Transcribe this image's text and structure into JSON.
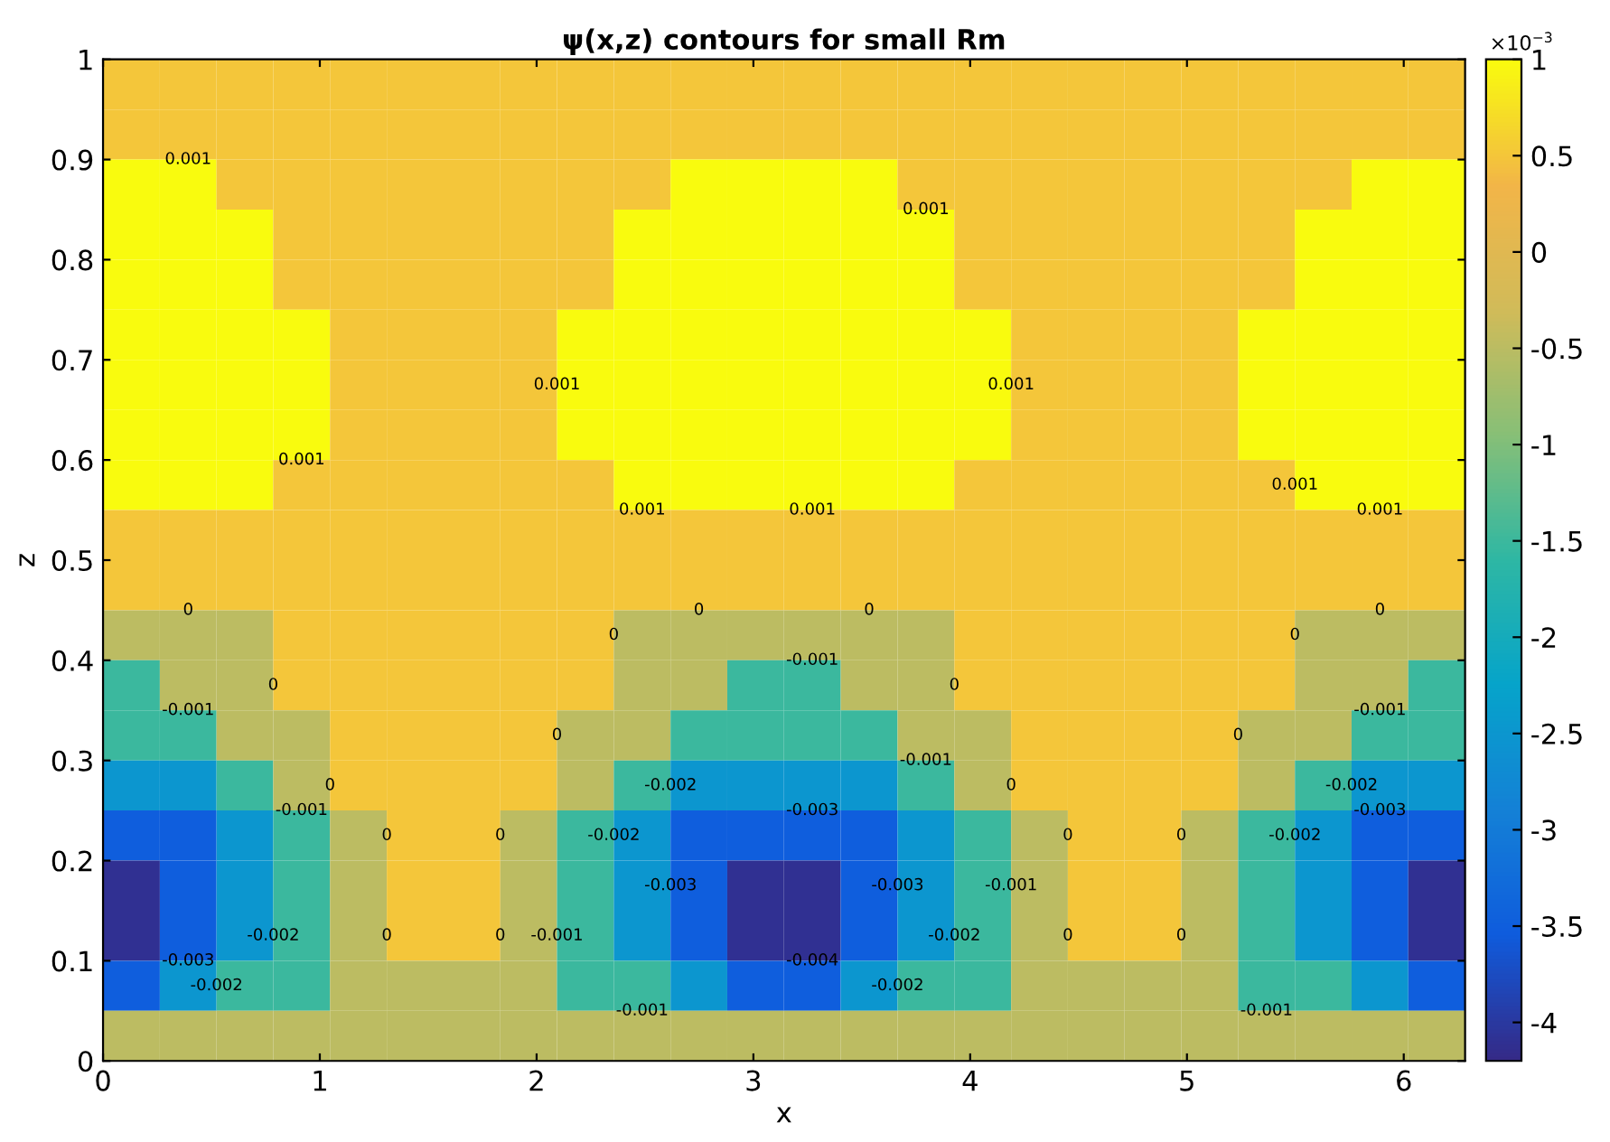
{
  "chart_data": {
    "type": "heatmap",
    "title": "ψ(x,z) contours for small Rm",
    "xlabel": "x",
    "ylabel": "z",
    "clabel": "×10$^{−3}$",
    "x": [
      0.131,
      0.393,
      0.654,
      0.916,
      1.178,
      1.44,
      1.702,
      1.963,
      2.225,
      2.487,
      2.749,
      3.01,
      3.272,
      3.534,
      3.796,
      4.058,
      4.32,
      4.581,
      4.843,
      5.105,
      5.367,
      5.629,
      5.89,
      6.152
    ],
    "y": [
      0.975,
      0.925,
      0.875,
      0.825,
      0.775,
      0.725,
      0.675,
      0.625,
      0.575,
      0.525,
      0.475,
      0.425,
      0.375,
      0.325,
      0.275,
      0.225,
      0.175,
      0.125,
      0.075,
      0.025
    ],
    "cells": [
      [
        0.5,
        0.5,
        0.5,
        0.5,
        0.5,
        0.5,
        0.5,
        0.5,
        0.5,
        0.5,
        0.5,
        0.5,
        0.5,
        0.5,
        0.5,
        0.5,
        0.5,
        0.5,
        0.5,
        0.5,
        0.5,
        0.5,
        0.5,
        0.5
      ],
      [
        0.5,
        0.5,
        0.5,
        0.5,
        0.5,
        0.5,
        0.5,
        0.5,
        0.5,
        0.5,
        0.5,
        0.5,
        0.5,
        0.5,
        0.5,
        0.5,
        0.5,
        0.5,
        0.5,
        0.5,
        0.5,
        0.5,
        0.5,
        0.5
      ],
      [
        1,
        1,
        0.5,
        0.5,
        0.5,
        0.5,
        0.5,
        0.5,
        0.5,
        0.5,
        1,
        1,
        1,
        1,
        0.5,
        0.5,
        0.5,
        0.5,
        0.5,
        0.5,
        0.5,
        0.5,
        1,
        1
      ],
      [
        1,
        1,
        1,
        0.5,
        0.5,
        0.5,
        0.5,
        0.5,
        0.5,
        1,
        1,
        1,
        1,
        1,
        1,
        0.5,
        0.5,
        0.5,
        0.5,
        0.5,
        0.5,
        1,
        1,
        1
      ],
      [
        1,
        1,
        1,
        0.5,
        0.5,
        0.5,
        0.5,
        0.5,
        0.5,
        1,
        1,
        1,
        1,
        1,
        1,
        0.5,
        0.5,
        0.5,
        0.5,
        0.5,
        0.5,
        1,
        1,
        1
      ],
      [
        1,
        1,
        1,
        1,
        0.5,
        0.5,
        0.5,
        0.5,
        1,
        1,
        1,
        1,
        1,
        1,
        1,
        1,
        0.5,
        0.5,
        0.5,
        0.5,
        1,
        1,
        1,
        1
      ],
      [
        1,
        1,
        1,
        1,
        0.5,
        0.5,
        0.5,
        0.5,
        1,
        1,
        1,
        1,
        1,
        1,
        1,
        1,
        0.5,
        0.5,
        0.5,
        0.5,
        1,
        1,
        1,
        1
      ],
      [
        1,
        1,
        1,
        1,
        0.5,
        0.5,
        0.5,
        0.5,
        1,
        1,
        1,
        1,
        1,
        1,
        1,
        1,
        0.5,
        0.5,
        0.5,
        0.5,
        1,
        1,
        1,
        1
      ],
      [
        1,
        1,
        1,
        0.5,
        0.5,
        0.5,
        0.5,
        0.5,
        0.5,
        1,
        1,
        1,
        1,
        1,
        1,
        0.5,
        0.5,
        0.5,
        0.5,
        0.5,
        0.5,
        1,
        1,
        1
      ],
      [
        0.5,
        0.5,
        0.5,
        0.5,
        0.5,
        0.5,
        0.5,
        0.5,
        0.5,
        0.5,
        0.5,
        0.5,
        0.5,
        0.5,
        0.5,
        0.5,
        0.5,
        0.5,
        0.5,
        0.5,
        0.5,
        0.5,
        0.5,
        0.5
      ],
      [
        0.5,
        0.5,
        0.5,
        0.5,
        0.5,
        0.5,
        0.5,
        0.5,
        0.5,
        0.5,
        0.5,
        0.5,
        0.5,
        0.5,
        0.5,
        0.5,
        0.5,
        0.5,
        0.5,
        0.5,
        0.5,
        0.5,
        0.5,
        0.5
      ],
      [
        -0.5,
        -0.5,
        -0.5,
        0.5,
        0.5,
        0.5,
        0.5,
        0.5,
        0.5,
        -0.5,
        -0.5,
        -0.5,
        -0.5,
        -0.5,
        -0.5,
        0.5,
        0.5,
        0.5,
        0.5,
        0.5,
        0.5,
        -0.5,
        -0.5,
        -0.5
      ],
      [
        -1.5,
        -0.5,
        -0.5,
        0.5,
        0.5,
        0.5,
        0.5,
        0.5,
        0.5,
        -0.5,
        -0.5,
        -1.5,
        -1.5,
        -0.5,
        -0.5,
        0.5,
        0.5,
        0.5,
        0.5,
        0.5,
        0.5,
        -0.5,
        -0.5,
        -1.5
      ],
      [
        -1.5,
        -1.5,
        -0.5,
        -0.5,
        0.5,
        0.5,
        0.5,
        0.5,
        -0.5,
        -0.5,
        -1.5,
        -1.5,
        -1.5,
        -1.5,
        -0.5,
        -0.5,
        0.5,
        0.5,
        0.5,
        0.5,
        -0.5,
        -0.5,
        -1.5,
        -1.5
      ],
      [
        -2.5,
        -2.5,
        -1.5,
        -0.5,
        0.5,
        0.5,
        0.5,
        0.5,
        -0.5,
        -1.5,
        -2.5,
        -2.5,
        -2.5,
        -2.5,
        -1.5,
        -0.5,
        0.5,
        0.5,
        0.5,
        0.5,
        -0.5,
        -1.5,
        -2.5,
        -2.5
      ],
      [
        -3.5,
        -3.5,
        -2.5,
        -1.5,
        -0.5,
        0.5,
        0.5,
        -0.5,
        -1.5,
        -2.5,
        -3.5,
        -3.5,
        -3.5,
        -3.5,
        -2.5,
        -1.5,
        -0.5,
        0.5,
        0.5,
        -0.5,
        -1.5,
        -2.5,
        -3.5,
        -3.5
      ],
      [
        -4.1,
        -3.5,
        -2.5,
        -1.5,
        -0.5,
        0.5,
        0.5,
        -0.5,
        -1.5,
        -2.5,
        -3.5,
        -4.1,
        -4.1,
        -3.5,
        -2.5,
        -1.5,
        -0.5,
        0.5,
        0.5,
        -0.5,
        -1.5,
        -2.5,
        -3.5,
        -4.1
      ],
      [
        -4.1,
        -3.5,
        -2.5,
        -1.5,
        -0.5,
        0.5,
        0.5,
        -0.5,
        -1.5,
        -2.5,
        -3.5,
        -4.1,
        -4.1,
        -3.5,
        -2.5,
        -1.5,
        -0.5,
        0.5,
        0.5,
        -0.5,
        -1.5,
        -2.5,
        -3.5,
        -4.1
      ],
      [
        -3.5,
        -2.5,
        -1.5,
        -1.5,
        -0.5,
        -0.5,
        -0.5,
        -0.5,
        -1.5,
        -1.5,
        -2.5,
        -3.5,
        -3.5,
        -2.5,
        -1.5,
        -1.5,
        -0.5,
        -0.5,
        -0.5,
        -0.5,
        -1.5,
        -1.5,
        -2.5,
        -3.5
      ],
      [
        -0.5,
        -0.5,
        -0.5,
        -0.5,
        -0.5,
        -0.5,
        -0.5,
        -0.5,
        -0.5,
        -0.5,
        -0.5,
        -0.5,
        -0.5,
        -0.5,
        -0.5,
        -0.5,
        -0.5,
        -0.5,
        -0.5,
        -0.5,
        -0.5,
        -0.5,
        -0.5,
        -0.5
      ]
    ],
    "xlim": [
      0,
      6.283
    ],
    "ylim": [
      0,
      1
    ],
    "xticks": [
      0,
      1,
      2,
      3,
      4,
      5,
      6
    ],
    "yticks": [
      0,
      0.1,
      0.2,
      0.3,
      0.4,
      0.5,
      0.6,
      0.7,
      0.8,
      0.9,
      1
    ],
    "clim": [
      -4.2,
      1
    ],
    "cticks": [
      -4,
      -3.5,
      -3,
      -2.5,
      -2,
      -1.5,
      -1,
      -0.5,
      0,
      0.5,
      1
    ],
    "annotations": [
      "0",
      "0",
      "0",
      "0",
      "0",
      "0.001",
      "0.001",
      "0.001",
      "0.001",
      "0.001",
      "0.001",
      "0.001",
      "0.001",
      "0.001",
      "0",
      "0",
      "0",
      "0",
      "0",
      "0",
      "0",
      "0",
      "0",
      "0",
      "0",
      "0",
      "0",
      "0",
      "0",
      "-0.001",
      "-0.001",
      "-0.001",
      "-0.001",
      "-0.001",
      "-0.001",
      "-0.001",
      "-0.001",
      "-0.001",
      "-0.002",
      "-0.002",
      "-0.002",
      "-0.002",
      "-0.002",
      "-0.002",
      "-0.002",
      "-0.002",
      "-0.003",
      "-0.003",
      "-0.003",
      "-0.003",
      "-0.003",
      "-0.004"
    ]
  }
}
